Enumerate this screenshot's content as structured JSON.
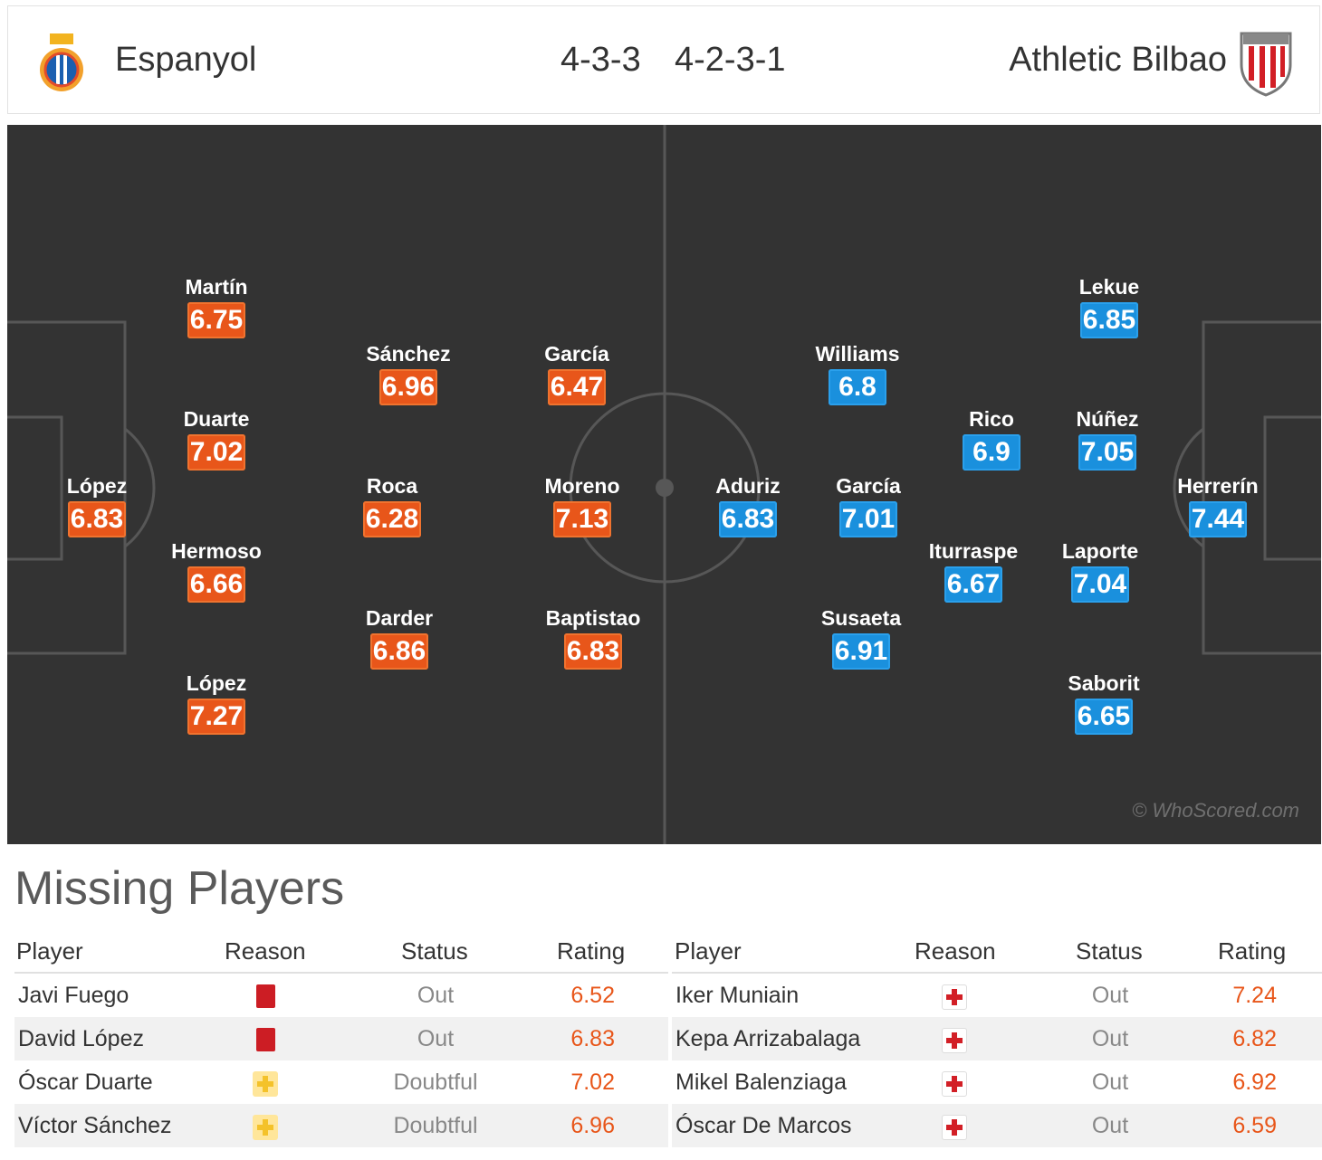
{
  "header": {
    "home_team": "Espanyol",
    "home_formation": "4-3-3",
    "away_formation": "4-2-3-1",
    "away_team": "Athletic Bilbao"
  },
  "pitch": {
    "watermark": "© WhoScored.com",
    "home_players": [
      {
        "name": "López",
        "rating": "6.83"
      },
      {
        "name": "Martín",
        "rating": "6.75"
      },
      {
        "name": "Duarte",
        "rating": "7.02"
      },
      {
        "name": "Hermoso",
        "rating": "6.66"
      },
      {
        "name": "López",
        "rating": "7.27"
      },
      {
        "name": "Sánchez",
        "rating": "6.96"
      },
      {
        "name": "Roca",
        "rating": "6.28"
      },
      {
        "name": "Darder",
        "rating": "6.86"
      },
      {
        "name": "García",
        "rating": "6.47"
      },
      {
        "name": "Moreno",
        "rating": "7.13"
      },
      {
        "name": "Baptistao",
        "rating": "6.83"
      }
    ],
    "away_players": [
      {
        "name": "Herrerín",
        "rating": "7.44"
      },
      {
        "name": "Lekue",
        "rating": "6.85"
      },
      {
        "name": "Núñez",
        "rating": "7.05"
      },
      {
        "name": "Laporte",
        "rating": "7.04"
      },
      {
        "name": "Saborit",
        "rating": "6.65"
      },
      {
        "name": "Rico",
        "rating": "6.9"
      },
      {
        "name": "Iturraspe",
        "rating": "6.67"
      },
      {
        "name": "Williams",
        "rating": "6.8"
      },
      {
        "name": "García",
        "rating": "7.01"
      },
      {
        "name": "Susaeta",
        "rating": "6.91"
      },
      {
        "name": "Aduriz",
        "rating": "6.83"
      }
    ]
  },
  "missing": {
    "title": "Missing Players",
    "columns": {
      "player": "Player",
      "reason": "Reason",
      "status": "Status",
      "rating": "Rating"
    },
    "home": [
      {
        "player": "Javi Fuego",
        "reason": "red-card-icon",
        "status": "Out",
        "rating": "6.52"
      },
      {
        "player": "David López",
        "reason": "red-card-icon",
        "status": "Out",
        "rating": "6.83"
      },
      {
        "player": "Óscar Duarte",
        "reason": "doubtful-icon",
        "status": "Doubtful",
        "rating": "7.02"
      },
      {
        "player": "Víctor Sánchez",
        "reason": "doubtful-icon",
        "status": "Doubtful",
        "rating": "6.96"
      }
    ],
    "away": [
      {
        "player": "Iker Muniain",
        "reason": "injury-icon",
        "status": "Out",
        "rating": "7.24"
      },
      {
        "player": "Kepa Arrizabalaga",
        "reason": "injury-icon",
        "status": "Out",
        "rating": "6.82"
      },
      {
        "player": "Mikel Balenziaga",
        "reason": "injury-icon",
        "status": "Out",
        "rating": "6.92"
      },
      {
        "player": "Óscar De Marcos",
        "reason": "injury-icon",
        "status": "Out",
        "rating": "6.59"
      }
    ]
  },
  "colors": {
    "home_rating": "#e8561a",
    "away_rating": "#1a90dd",
    "pitch": "#333333"
  }
}
